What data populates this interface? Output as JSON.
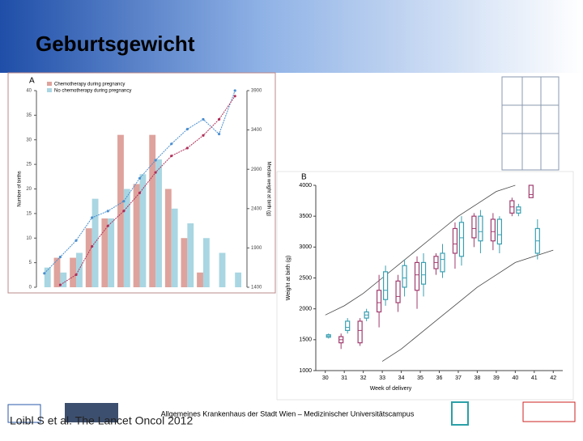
{
  "slide": {
    "title": "Geburtsgewicht",
    "citation": "Loibl S et al. The Lancet Oncol 2012",
    "footer": "Allgemeines Krankenhaus der Stadt Wien – Medizinischer Universitätscampus"
  },
  "chart_data": [
    {
      "type": "bar",
      "panel": "A",
      "y_label": "Number of births",
      "y2_label": "Median weight at birth (g)",
      "categories": [
        null,
        null,
        null,
        null,
        null,
        null,
        null,
        null,
        null,
        null,
        null,
        null,
        null
      ],
      "ylim": [
        0,
        40
      ],
      "yticks": [
        0,
        5,
        10,
        15,
        20,
        25,
        30,
        35,
        40
      ],
      "y2lim": [
        1400,
        3900
      ],
      "y2ticks": [
        1400,
        1900,
        2400,
        2900,
        3400,
        3900
      ],
      "series": [
        {
          "name": "Chemotherapy during pregnancy",
          "color": "#dea39c",
          "values": [
            0,
            6,
            6,
            12,
            14,
            31,
            21,
            31,
            20,
            10,
            3,
            0,
            0
          ]
        },
        {
          "name": "No chemotherapy during pregnancy",
          "color": "#a9d6e2",
          "values": [
            4,
            3,
            7,
            18,
            14,
            20,
            23,
            26,
            16,
            13,
            10,
            7,
            3
          ]
        },
        {
          "color": "#4a8fd0",
          "axis": "y2",
          "type": "line",
          "values": [
            1577,
            1785,
            1994,
            2285,
            2369,
            2494,
            2785,
            3015,
            3223,
            3410,
            3535,
            3348,
            3900
          ]
        },
        {
          "color": "#b0305a",
          "axis": "y2",
          "type": "line",
          "values": [
            null,
            1430,
            1560,
            1920,
            2180,
            2370,
            2600,
            2860,
            3070,
            3170,
            3330,
            3535,
            3830
          ]
        }
      ]
    },
    {
      "type": "box",
      "panel": "B",
      "y_label": "Weight at birth (g)",
      "x_label": "Week of delivery",
      "x": [
        30,
        31,
        32,
        33,
        34,
        35,
        36,
        37,
        38,
        39,
        40,
        41,
        42
      ],
      "xlim": [
        29.5,
        42.5
      ],
      "xticks": [
        30,
        31,
        32,
        33,
        34,
        35,
        36,
        37,
        38,
        39,
        40,
        41,
        42
      ],
      "ylim": [
        1000,
        4000
      ],
      "yticks": [
        1000,
        1500,
        2000,
        2500,
        3000,
        3500,
        4000
      ],
      "series": [
        {
          "color": "#3a9fb0",
          "values": [
            [
              1520,
              1540,
              1560,
              1580,
              1600
            ],
            [
              1600,
              1650,
              1700,
              1800,
              1850
            ],
            [
              1800,
              1850,
              1900,
              1950,
              2000
            ],
            [
              2050,
              2150,
              2300,
              2600,
              2700
            ],
            [
              2200,
              2350,
              2500,
              2700,
              2800
            ],
            [
              2200,
              2400,
              2550,
              2750,
              2900
            ],
            [
              2500,
              2600,
              2800,
              2900,
              3050
            ],
            [
              2700,
              2850,
              3150,
              3400,
              3500
            ],
            [
              2900,
              3100,
              3250,
              3500,
              3600
            ],
            [
              2900,
              3050,
              3200,
              3450,
              3500
            ],
            [
              3500,
              3550,
              3600,
              3650,
              3700
            ],
            [
              2800,
              2900,
              3100,
              3300,
              3450
            ],
            null
          ]
        },
        {
          "color": "#a03c6e",
          "values": [
            null,
            [
              1350,
              1450,
              1500,
              1550,
              1600
            ],
            [
              1400,
              1450,
              1650,
              1800,
              1850
            ],
            [
              1700,
              1950,
              2100,
              2300,
              2550
            ],
            [
              1950,
              2100,
              2200,
              2450,
              2550
            ],
            [
              2000,
              2300,
              2550,
              2750,
              2850
            ],
            [
              2550,
              2650,
              2750,
              2850,
              2900
            ],
            [
              2650,
              2900,
              3050,
              3300,
              3400
            ],
            [
              3000,
              3150,
              3300,
              3500,
              3550
            ],
            [
              2950,
              3100,
              3250,
              3450,
              3550
            ],
            [
              3500,
              3550,
              3650,
              3750,
              3800
            ],
            [
              3800,
              3800,
              3850,
              4000,
              4000
            ],
            null
          ]
        },
        {
          "color": "#444444",
          "type": "line",
          "values": [
            1900,
            2050,
            2250,
            2500,
            2750,
            3000,
            3250,
            3500,
            3700,
            3900,
            4000,
            null,
            null
          ]
        },
        {
          "color": "#444444",
          "type": "line",
          "values": [
            null,
            null,
            null,
            1150,
            1350,
            1600,
            1850,
            2100,
            2350,
            2550,
            2750,
            2850,
            2950
          ]
        }
      ]
    }
  ]
}
